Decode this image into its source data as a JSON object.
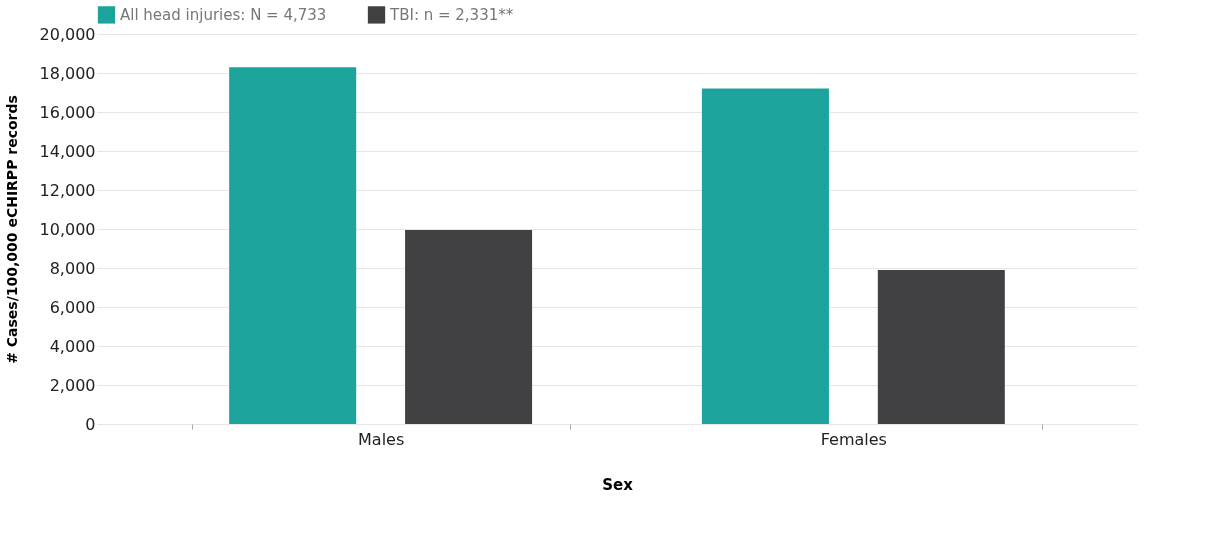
{
  "chart_data": {
    "type": "bar",
    "xlabel": "Sex",
    "ylabel": "# Cases/100,000 eCHIRPP records",
    "categories": [
      "Males",
      "Females"
    ],
    "series": [
      {
        "name": "All head injuries: N = 4,733",
        "color": "#1ba39c",
        "values": [
          18300,
          17200
        ]
      },
      {
        "name": "TBI: n = 2,331**",
        "color": "#414143",
        "values": [
          9950,
          7900
        ]
      }
    ],
    "ylim": [
      0,
      20000
    ],
    "yticks": [
      0,
      {
        "value": 2000,
        "label": "2,000"
      },
      {
        "value": 4000,
        "label": "4,000"
      },
      {
        "value": 6000,
        "label": "6,000"
      },
      {
        "value": 8000,
        "label": "8,000"
      },
      {
        "value": 10000,
        "label": "10,000"
      },
      {
        "value": 12000,
        "label": "12,000"
      },
      {
        "value": 14000,
        "label": "14,000"
      },
      {
        "value": 16000,
        "label": "16,000"
      },
      {
        "value": 18000,
        "label": "18,000"
      },
      {
        "value": 20000,
        "label": "20,000"
      }
    ],
    "grid": "y",
    "legend": "top left"
  }
}
